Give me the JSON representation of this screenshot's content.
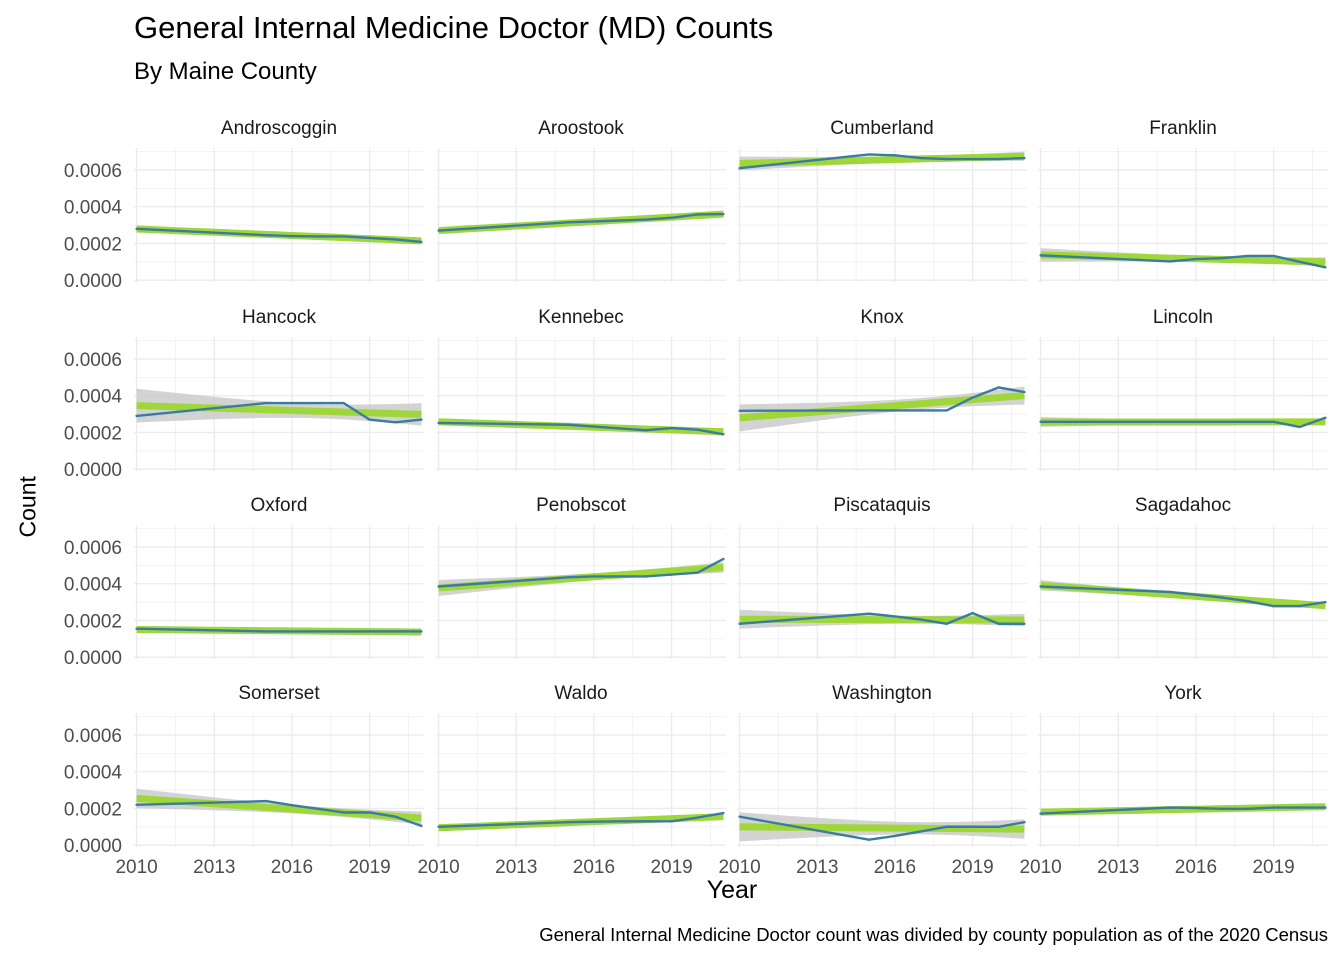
{
  "chart_data": {
    "type": "line",
    "title": "General Internal Medicine Doctor (MD) Counts",
    "subtitle": "By Maine County",
    "xlabel": "Year",
    "ylabel": "Count",
    "caption": "General Internal Medicine Doctor count was divided by county population as of the 2020 Census",
    "x": [
      2010,
      2015,
      2016,
      2017,
      2018,
      2019,
      2020,
      2021
    ],
    "xlim": [
      2009.9,
      2021.1
    ],
    "ylim": [
      -1e-05,
      0.00072
    ],
    "x_ticks": [
      2010,
      2013,
      2016,
      2019
    ],
    "x_tick_labels": [
      "2010",
      "2013",
      "2016",
      "2019"
    ],
    "y_ticks": [
      0,
      0.0002,
      0.0004,
      0.0006
    ],
    "y_tick_labels": [
      "0.0000",
      "0.0002",
      "0.0004",
      "0.0006"
    ],
    "grid": true,
    "layout": "facet-grid-4x4",
    "colors": {
      "line": "#3a7ca0",
      "trend": "#9fd63a",
      "band": "#c8c8c8",
      "grid": "#ebebeb"
    },
    "panels": [
      {
        "name": "Androscoggin",
        "values": [
          0.00028,
          0.000245,
          0.00024,
          0.000238,
          0.000238,
          0.00023,
          0.000222,
          0.000208
        ]
      },
      {
        "name": "Aroostook",
        "values": [
          0.00027,
          0.000315,
          0.00032,
          0.000325,
          0.00033,
          0.00034,
          0.000358,
          0.00036
        ]
      },
      {
        "name": "Cumberland",
        "values": [
          0.00061,
          0.000685,
          0.00068,
          0.000665,
          0.00066,
          0.00066,
          0.00066,
          0.000665
        ]
      },
      {
        "name": "Franklin",
        "values": [
          0.000135,
          0.000102,
          0.000115,
          0.00012,
          0.000132,
          0.000132,
          0.0001,
          7e-05
        ]
      },
      {
        "name": "Hancock",
        "values": [
          0.00029,
          0.00036,
          0.00036,
          0.00036,
          0.00036,
          0.00027,
          0.000255,
          0.00027
        ]
      },
      {
        "name": "Kennebec",
        "values": [
          0.000252,
          0.000242,
          0.000232,
          0.000222,
          0.000212,
          0.000224,
          0.000215,
          0.00019
        ]
      },
      {
        "name": "Knox",
        "values": [
          0.000318,
          0.00032,
          0.00032,
          0.00032,
          0.00032,
          0.00039,
          0.000445,
          0.00042
        ]
      },
      {
        "name": "Lincoln",
        "values": [
          0.000258,
          0.000258,
          0.000258,
          0.000258,
          0.000258,
          0.000258,
          0.00023,
          0.00028
        ]
      },
      {
        "name": "Oxford",
        "values": [
          0.000155,
          0.00014,
          0.00014,
          0.00014,
          0.00014,
          0.00014,
          0.00014,
          0.00014
        ]
      },
      {
        "name": "Penobscot",
        "values": [
          0.000385,
          0.000435,
          0.00044,
          0.00044,
          0.00044,
          0.00045,
          0.00046,
          0.000535
        ]
      },
      {
        "name": "Piscataquis",
        "values": [
          0.000182,
          0.000237,
          0.000222,
          0.000205,
          0.000182,
          0.00024,
          0.000182,
          0.000182
        ]
      },
      {
        "name": "Sagadahoc",
        "values": [
          0.000385,
          0.000355,
          0.00034,
          0.000325,
          0.000305,
          0.000278,
          0.000278,
          0.0003
        ]
      },
      {
        "name": "Somerset",
        "values": [
          0.00022,
          0.00024,
          0.000218,
          0.000198,
          0.000178,
          0.000178,
          0.000155,
          0.000105
        ]
      },
      {
        "name": "Waldo",
        "values": [
          0.0001,
          0.000125,
          0.000128,
          0.00013,
          0.00013,
          0.00013,
          0.00015,
          0.000175
        ]
      },
      {
        "name": "Washington",
        "values": [
          0.000155,
          3e-05,
          5e-05,
          7.5e-05,
          0.0001,
          0.0001,
          0.0001,
          0.000125
        ]
      },
      {
        "name": "York",
        "values": [
          0.000172,
          0.000205,
          0.000202,
          0.000198,
          0.000198,
          0.000205,
          0.000205,
          0.000205
        ]
      }
    ]
  }
}
